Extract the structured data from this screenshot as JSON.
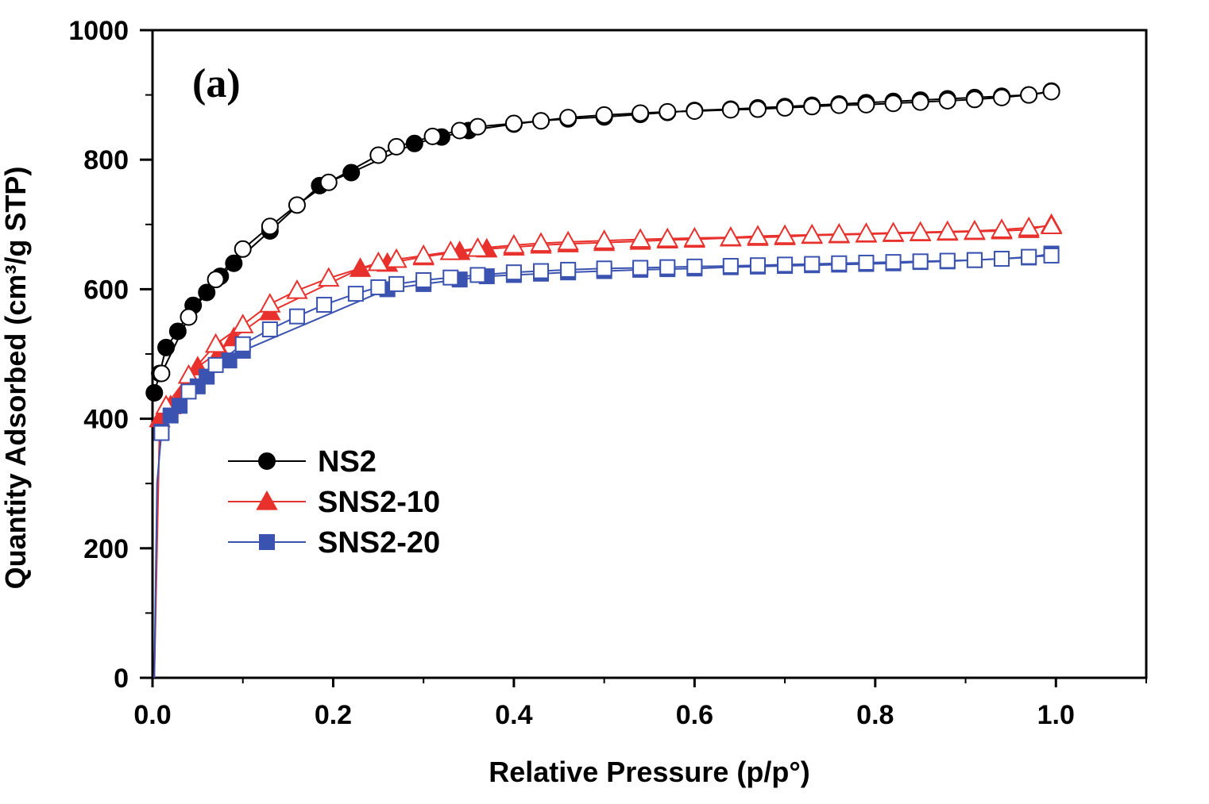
{
  "chart_data": {
    "type": "line",
    "panel_label": "(a)",
    "xlabel": "Relative Pressure (p/p°)",
    "ylabel": "Quantity Adsorbed (cm³/g STP)",
    "xlim": [
      0.0,
      1.1
    ],
    "ylim": [
      0,
      1000
    ],
    "x_ticks": [
      0.0,
      0.2,
      0.4,
      0.6,
      0.8,
      1.0
    ],
    "x_tick_labels": [
      "0.0",
      "0.2",
      "0.4",
      "0.6",
      "0.8",
      "1.0"
    ],
    "y_ticks": [
      0,
      200,
      400,
      600,
      800,
      1000
    ],
    "y_tick_labels": [
      "0",
      "200",
      "400",
      "600",
      "800",
      "1000"
    ],
    "legend_position": "middle-left",
    "series": [
      {
        "name": "NS2",
        "color": "#000000",
        "marker": "circle",
        "adsorption": {
          "x": [
            0.002,
            0.008,
            0.015,
            0.028,
            0.045,
            0.06,
            0.075,
            0.09,
            0.13,
            0.185,
            0.22,
            0.29,
            0.32,
            0.35,
            0.4,
            0.43,
            0.46,
            0.5,
            0.54,
            0.57,
            0.6,
            0.64,
            0.67,
            0.7,
            0.73,
            0.76,
            0.79,
            0.82,
            0.85,
            0.88,
            0.91,
            0.94,
            0.97,
            0.995
          ],
          "y": [
            440,
            470,
            510,
            535,
            575,
            595,
            620,
            640,
            690,
            760,
            780,
            825,
            835,
            845,
            855,
            860,
            863,
            866,
            870,
            873,
            876,
            878,
            880,
            882,
            884,
            886,
            888,
            890,
            892,
            894,
            896,
            898,
            900,
            906
          ]
        },
        "desorption": {
          "x": [
            0.995,
            0.97,
            0.94,
            0.91,
            0.88,
            0.85,
            0.82,
            0.79,
            0.76,
            0.73,
            0.7,
            0.67,
            0.64,
            0.6,
            0.57,
            0.54,
            0.5,
            0.46,
            0.43,
            0.4,
            0.36,
            0.34,
            0.31,
            0.27,
            0.25,
            0.195,
            0.16,
            0.13,
            0.1,
            0.07,
            0.04,
            0.01
          ],
          "y": [
            905,
            900,
            896,
            893,
            891,
            889,
            887,
            885,
            884,
            882,
            880,
            878,
            877,
            875,
            874,
            872,
            869,
            865,
            860,
            856,
            851,
            845,
            836,
            820,
            807,
            765,
            730,
            697,
            662,
            615,
            557,
            470
          ]
        }
      },
      {
        "name": "SNS2-10",
        "color": "#e8302c",
        "marker": "triangle",
        "adsorption": {
          "x": [
            0.002,
            0.005,
            0.008,
            0.02,
            0.035,
            0.05,
            0.075,
            0.09,
            0.13,
            0.23,
            0.26,
            0.3,
            0.34,
            0.37,
            0.4,
            0.43,
            0.46,
            0.5,
            0.54,
            0.57,
            0.6,
            0.64,
            0.67,
            0.7,
            0.73,
            0.76,
            0.79,
            0.82,
            0.85,
            0.88,
            0.91,
            0.94,
            0.97,
            0.995
          ],
          "y": [
            0,
            200,
            400,
            420,
            445,
            480,
            505,
            525,
            565,
            632,
            640,
            650,
            658,
            662,
            665,
            668,
            670,
            672,
            674,
            676,
            677,
            679,
            680,
            681,
            683,
            684,
            685,
            686,
            687,
            688,
            689,
            690,
            692,
            700
          ]
        },
        "desorption": {
          "x": [
            0.995,
            0.97,
            0.94,
            0.91,
            0.88,
            0.85,
            0.82,
            0.79,
            0.76,
            0.73,
            0.7,
            0.67,
            0.64,
            0.6,
            0.57,
            0.54,
            0.5,
            0.46,
            0.43,
            0.4,
            0.36,
            0.33,
            0.3,
            0.27,
            0.25,
            0.195,
            0.16,
            0.13,
            0.1,
            0.07,
            0.04,
            0.015
          ],
          "y": [
            698,
            695,
            692,
            690,
            689,
            688,
            687,
            686,
            685,
            684,
            683,
            682,
            680,
            679,
            678,
            677,
            675,
            673,
            671,
            668,
            663,
            658,
            652,
            646,
            641,
            617,
            598,
            577,
            545,
            515,
            467,
            420
          ]
        }
      },
      {
        "name": "SNS2-20",
        "color": "#3b53b0",
        "marker": "square",
        "adsorption": {
          "x": [
            0.002,
            0.005,
            0.01,
            0.02,
            0.03,
            0.05,
            0.06,
            0.085,
            0.1,
            0.26,
            0.3,
            0.34,
            0.37,
            0.4,
            0.43,
            0.46,
            0.5,
            0.54,
            0.57,
            0.6,
            0.64,
            0.67,
            0.7,
            0.73,
            0.76,
            0.79,
            0.82,
            0.85,
            0.88,
            0.91,
            0.94,
            0.97,
            0.995
          ],
          "y": [
            0,
            300,
            380,
            405,
            420,
            450,
            465,
            490,
            505,
            600,
            608,
            615,
            620,
            622,
            624,
            626,
            628,
            630,
            631,
            632,
            634,
            635,
            636,
            637,
            638,
            639,
            640,
            642,
            643,
            645,
            647,
            649,
            655
          ]
        },
        "desorption": {
          "x": [
            0.995,
            0.97,
            0.94,
            0.91,
            0.88,
            0.85,
            0.82,
            0.79,
            0.76,
            0.73,
            0.7,
            0.67,
            0.64,
            0.6,
            0.57,
            0.54,
            0.5,
            0.46,
            0.43,
            0.4,
            0.36,
            0.33,
            0.3,
            0.27,
            0.25,
            0.225,
            0.19,
            0.16,
            0.13,
            0.1,
            0.07,
            0.04,
            0.01
          ],
          "y": [
            652,
            650,
            647,
            645,
            644,
            643,
            642,
            641,
            640,
            639,
            638,
            637,
            636,
            635,
            634,
            633,
            632,
            630,
            628,
            626,
            622,
            618,
            614,
            608,
            603,
            593,
            576,
            558,
            538,
            515,
            483,
            442,
            378
          ]
        }
      }
    ]
  }
}
